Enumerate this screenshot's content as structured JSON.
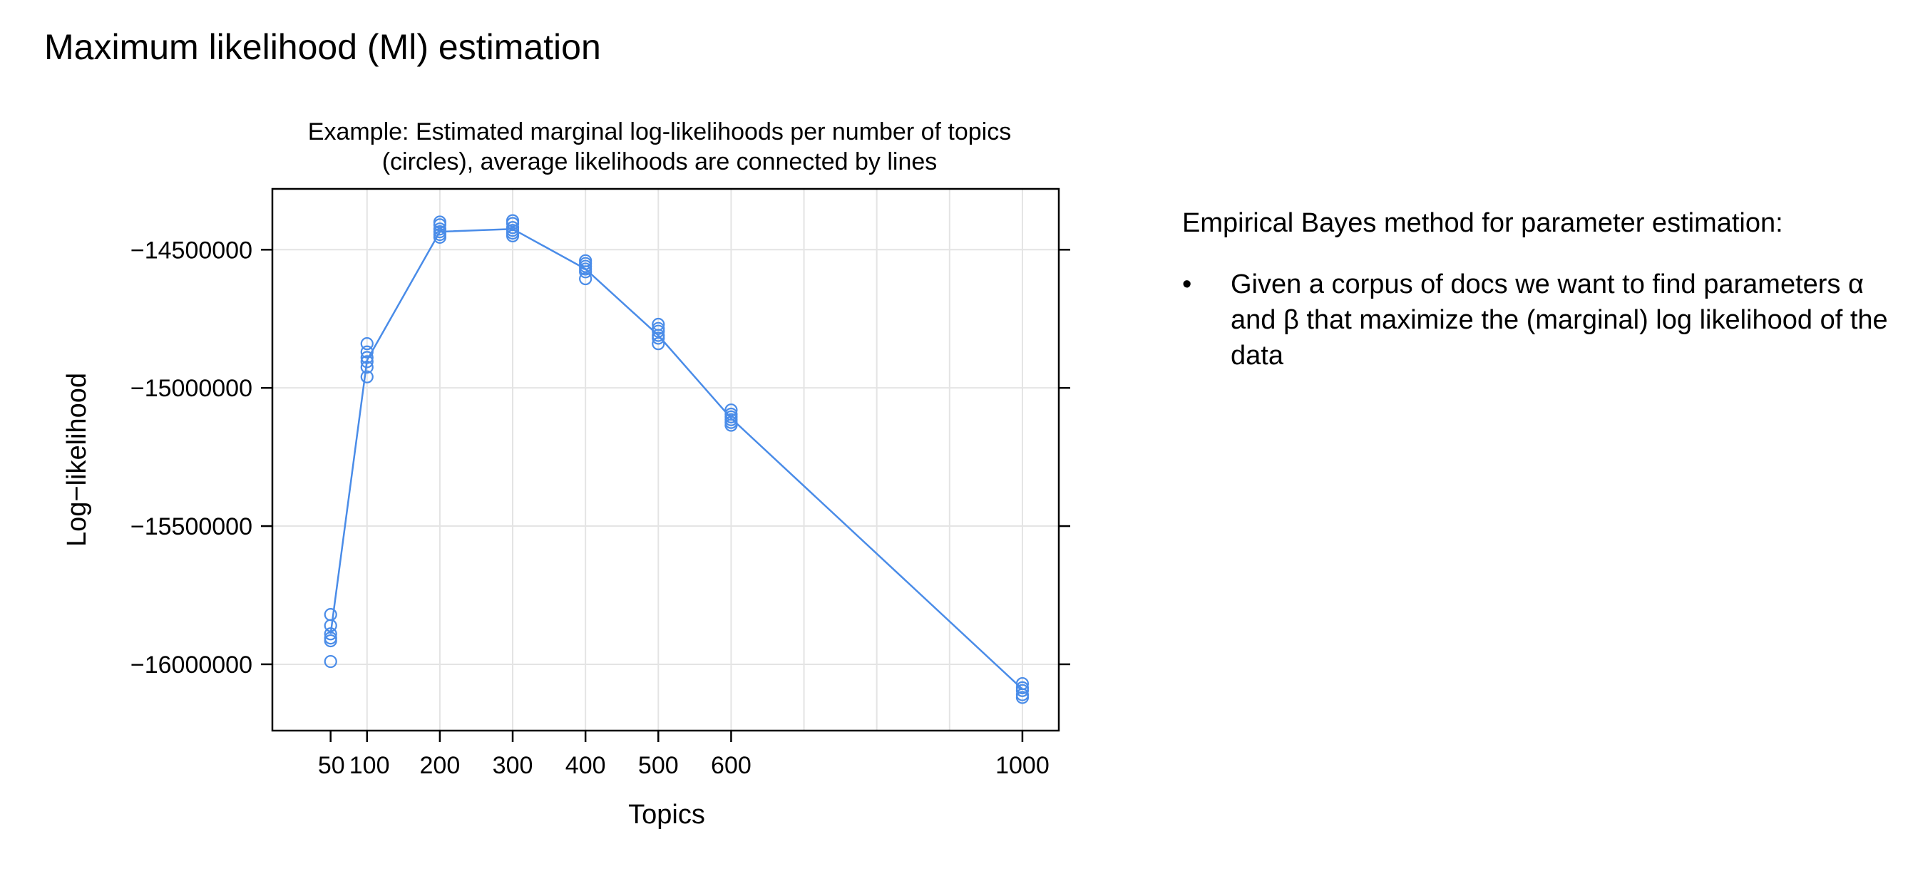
{
  "slide": {
    "title": "Maximum likelihood (Ml) estimation"
  },
  "side_panel": {
    "heading": "Empirical Bayes method for parameter estimation:",
    "bullets": [
      "Given a corpus of docs we want to find parameters α and β that maximize the (marginal) log likelihood of the data"
    ]
  },
  "chart_data": {
    "type": "scatter",
    "title": "Example: Estimated marginal log-likelihoods per number of topics",
    "subtitle": "(circles), average likelihoods are connected by lines",
    "xlabel": "Topics",
    "ylabel": "Log−likelihood",
    "x_ticks": [
      50,
      100,
      200,
      300,
      400,
      500,
      600,
      1000
    ],
    "x_tick_labels": [
      "50",
      "100",
      "200",
      "300",
      "400",
      "500",
      "600",
      "1000"
    ],
    "y_ticks": [
      -14500000,
      -15000000,
      -15500000,
      -16000000
    ],
    "y_tick_labels": [
      "−14500000",
      "−15000000",
      "−15500000",
      "−16000000"
    ],
    "xlim": [
      -30,
      1050
    ],
    "ylim": [
      -16240000,
      -14280000
    ],
    "grid": true,
    "series": [
      {
        "color": "#4a8ce8",
        "points": [
          {
            "x": 50,
            "y": -15820000
          },
          {
            "x": 50,
            "y": -15860000
          },
          {
            "x": 50,
            "y": -15890000
          },
          {
            "x": 50,
            "y": -15905000
          },
          {
            "x": 50,
            "y": -15915000
          },
          {
            "x": 50,
            "y": -15990000
          },
          {
            "x": 100,
            "y": -14840000
          },
          {
            "x": 100,
            "y": -14870000
          },
          {
            "x": 100,
            "y": -14890000
          },
          {
            "x": 100,
            "y": -14905000
          },
          {
            "x": 100,
            "y": -14925000
          },
          {
            "x": 100,
            "y": -14960000
          },
          {
            "x": 200,
            "y": -14400000
          },
          {
            "x": 200,
            "y": -14410000
          },
          {
            "x": 200,
            "y": -14425000
          },
          {
            "x": 200,
            "y": -14435000
          },
          {
            "x": 200,
            "y": -14445000
          },
          {
            "x": 200,
            "y": -14455000
          },
          {
            "x": 300,
            "y": -14395000
          },
          {
            "x": 300,
            "y": -14405000
          },
          {
            "x": 300,
            "y": -14420000
          },
          {
            "x": 300,
            "y": -14430000
          },
          {
            "x": 300,
            "y": -14440000
          },
          {
            "x": 300,
            "y": -14450000
          },
          {
            "x": 400,
            "y": -14540000
          },
          {
            "x": 400,
            "y": -14550000
          },
          {
            "x": 400,
            "y": -14560000
          },
          {
            "x": 400,
            "y": -14570000
          },
          {
            "x": 400,
            "y": -14580000
          },
          {
            "x": 400,
            "y": -14605000
          },
          {
            "x": 500,
            "y": -14770000
          },
          {
            "x": 500,
            "y": -14785000
          },
          {
            "x": 500,
            "y": -14795000
          },
          {
            "x": 500,
            "y": -14810000
          },
          {
            "x": 500,
            "y": -14820000
          },
          {
            "x": 500,
            "y": -14840000
          },
          {
            "x": 600,
            "y": -15080000
          },
          {
            "x": 600,
            "y": -15095000
          },
          {
            "x": 600,
            "y": -15105000
          },
          {
            "x": 600,
            "y": -15115000
          },
          {
            "x": 600,
            "y": -15125000
          },
          {
            "x": 600,
            "y": -15135000
          },
          {
            "x": 1000,
            "y": -16070000
          },
          {
            "x": 1000,
            "y": -16085000
          },
          {
            "x": 1000,
            "y": -16095000
          },
          {
            "x": 1000,
            "y": -16110000
          },
          {
            "x": 1000,
            "y": -16120000
          }
        ],
        "average_line": [
          {
            "x": 50,
            "y": -15890000
          },
          {
            "x": 100,
            "y": -14900000
          },
          {
            "x": 200,
            "y": -14435000
          },
          {
            "x": 300,
            "y": -14425000
          },
          {
            "x": 400,
            "y": -14570000
          },
          {
            "x": 500,
            "y": -14810000
          },
          {
            "x": 600,
            "y": -15110000
          },
          {
            "x": 1000,
            "y": -16090000
          }
        ]
      }
    ]
  }
}
